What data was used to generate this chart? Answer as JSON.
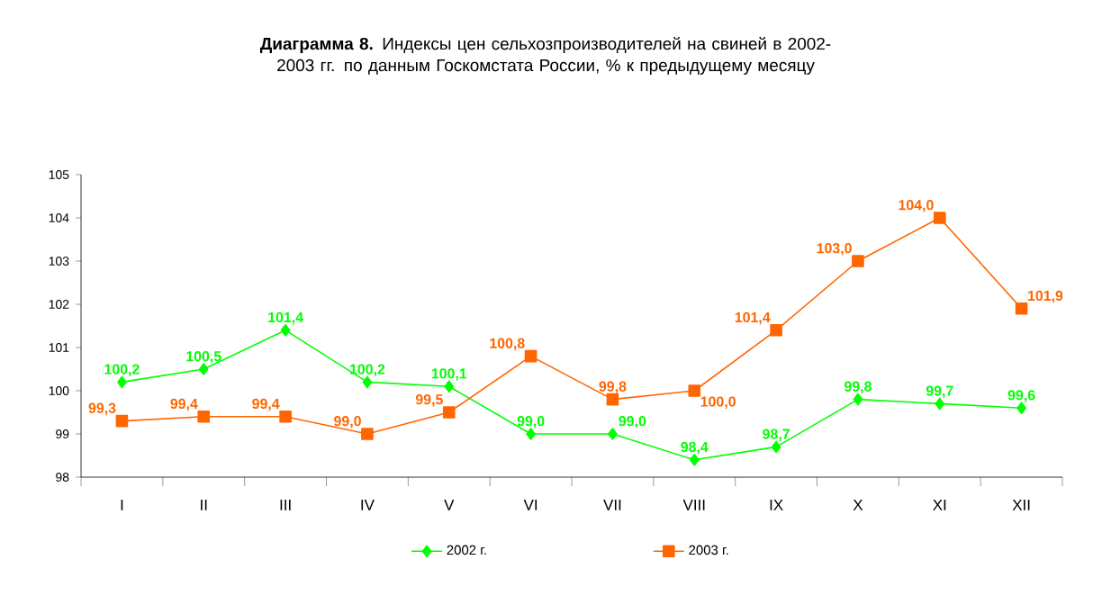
{
  "chart_data": {
    "type": "line",
    "title": "**Диаграмма 8.** Индексы цен сельхозпроизводителей на свиней в 2002-2003 гг.  по данным Госкомстата России, % к предыдущему месяцу",
    "categories": [
      "I",
      "II",
      "III",
      "IV",
      "V",
      "VI",
      "VII",
      "VIII",
      "IX",
      "X",
      "XI",
      "XII"
    ],
    "series": [
      {
        "name": "2002 г.",
        "color": "#00ff00",
        "marker": "diamond",
        "values": [
          100.2,
          100.5,
          101.4,
          100.2,
          100.1,
          99.0,
          99.0,
          98.4,
          98.7,
          99.8,
          99.7,
          99.6
        ],
        "value_labels": [
          "100,2",
          "100,5",
          "101,4",
          "100,2",
          "100,1",
          "99,0",
          "99,0",
          "98,4",
          "98,7",
          "99,8",
          "99,7",
          "99,6"
        ]
      },
      {
        "name": "2003 г.",
        "color": "#ff6600",
        "marker": "square",
        "values": [
          99.3,
          99.4,
          99.4,
          99.0,
          99.5,
          100.8,
          99.8,
          100.0,
          101.4,
          103.0,
          104.0,
          101.9
        ],
        "value_labels": [
          "99,3",
          "99,4",
          "99,4",
          "99,0",
          "99,5",
          "100,8",
          "99,8",
          "100,0",
          "101,4",
          "103,0",
          "104,0",
          "101,9"
        ]
      }
    ],
    "ylim": [
      98,
      105
    ],
    "yticks": [
      98,
      99,
      100,
      101,
      102,
      103,
      104,
      105
    ],
    "grid": false,
    "legend": "bottom",
    "line_style": "solid"
  }
}
